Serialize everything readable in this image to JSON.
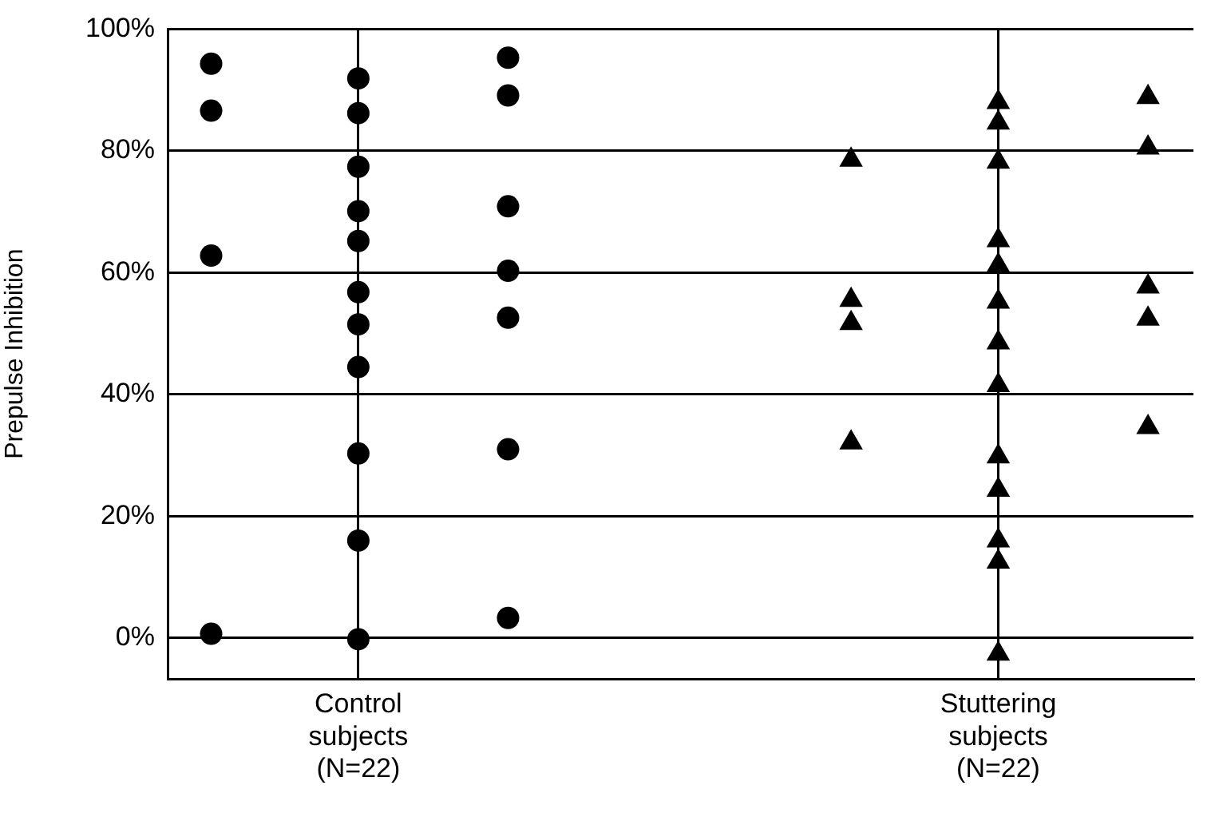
{
  "chart_data": {
    "type": "scatter",
    "ylabel": "Prepulse Inhibition",
    "categories": [
      "Control subjects (N=22)",
      "Stuttering subjects (N=22)"
    ],
    "ylim": [
      -6.7,
      100
    ],
    "yticks": [
      {
        "value": 0,
        "label": "0%"
      },
      {
        "value": 20,
        "label": "20%"
      },
      {
        "value": 40,
        "label": "40%"
      },
      {
        "value": 60,
        "label": "60%"
      },
      {
        "value": 80,
        "label": "80%"
      },
      {
        "value": 100,
        "label": "100%"
      }
    ],
    "grid": true,
    "legend": false,
    "series": [
      {
        "color": "#000000",
        "marker": "circle",
        "x": [
          "Control subjects (N=22)",
          "Control subjects (N=22)",
          "Control subjects (N=22)",
          "Control subjects (N=22)"
        ],
        "values": [
          94.3,
          86.6,
          62.8,
          0.7
        ]
      },
      {
        "color": "#000000",
        "marker": "circle",
        "x": [
          "Control subjects (N=22)",
          "Control subjects (N=22)",
          "Control subjects (N=22)",
          "Control subjects (N=22)",
          "Control subjects (N=22)",
          "Control subjects (N=22)",
          "Control subjects (N=22)",
          "Control subjects (N=22)",
          "Control subjects (N=22)",
          "Control subjects (N=22)",
          "Control subjects (N=22)"
        ],
        "values": [
          91.9,
          86.2,
          77.4,
          70.1,
          65.2,
          56.8,
          51.5,
          44.5,
          30.3,
          16.0,
          -0.2
        ]
      },
      {
        "color": "#000000",
        "marker": "circle",
        "x": [
          "Control subjects (N=22)",
          "Control subjects (N=22)",
          "Control subjects (N=22)",
          "Control subjects (N=22)",
          "Control subjects (N=22)",
          "Control subjects (N=22)",
          "Control subjects (N=22)"
        ],
        "values": [
          95.3,
          89.1,
          70.9,
          60.3,
          52.6,
          31.0,
          3.3
        ]
      },
      {
        "color": "#000000",
        "marker": "triangle",
        "x": [
          "Stuttering subjects (N=22)",
          "Stuttering subjects (N=22)",
          "Stuttering subjects (N=22)",
          "Stuttering subjects (N=22)"
        ],
        "values": [
          78.5,
          55.5,
          51.7,
          32.1
        ]
      },
      {
        "color": "#000000",
        "marker": "triangle",
        "x": [
          "Stuttering subjects (N=22)",
          "Stuttering subjects (N=22)",
          "Stuttering subjects (N=22)",
          "Stuttering subjects (N=22)",
          "Stuttering subjects (N=22)",
          "Stuttering subjects (N=22)",
          "Stuttering subjects (N=22)",
          "Stuttering subjects (N=22)",
          "Stuttering subjects (N=22)",
          "Stuttering subjects (N=22)",
          "Stuttering subjects (N=22)",
          "Stuttering subjects (N=22)",
          "Stuttering subjects (N=22)"
        ],
        "values": [
          88.0,
          84.6,
          78.2,
          65.3,
          61.2,
          55.2,
          48.5,
          41.5,
          29.8,
          24.3,
          16.0,
          12.5,
          -2.6
        ]
      },
      {
        "color": "#000000",
        "marker": "triangle",
        "x": [
          "Stuttering subjects (N=22)",
          "Stuttering subjects (N=22)",
          "Stuttering subjects (N=22)",
          "Stuttering subjects (N=22)",
          "Stuttering subjects (N=22)"
        ],
        "values": [
          88.8,
          80.5,
          57.7,
          52.4,
          34.6
        ]
      }
    ]
  }
}
